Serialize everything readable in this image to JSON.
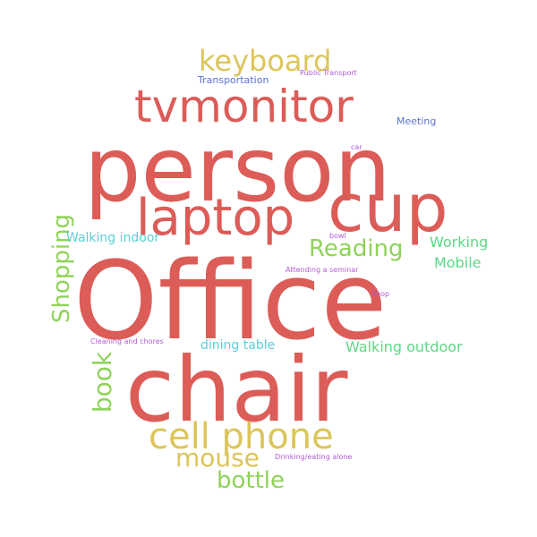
{
  "words": {
    "office": "Office",
    "person": "person",
    "chair": "chair",
    "cup": "cup",
    "laptop": "laptop",
    "tvmonitor": "tvmonitor",
    "cell_phone": "cell phone",
    "keyboard": "keyboard",
    "mouse": "mouse",
    "bottle": "bottle",
    "reading": "Reading",
    "book": "book",
    "shopping": "Shopping",
    "walking_outdoor": "Walking outdoor",
    "walking_indoor": "Walking indoor",
    "working": "Working",
    "mobile": "Mobile",
    "dining_table": "dining table",
    "transportation": "Transportation",
    "meeting": "Meeting",
    "public_transport": "Public Transport",
    "car": "car",
    "bowl": "bowl",
    "attending_seminar": "Attending a seminar",
    "shop": "Shop",
    "cleaning_chores": "Cleaning and chores",
    "drinking_eating_alone": "Drinking/eating alone"
  },
  "colors": {
    "red": "#dc5c57",
    "gold": "#dcc55a",
    "green": "#8fd35a",
    "teal_green": "#5ed786",
    "cyan": "#5acfd6",
    "blue": "#5b73d6",
    "purple": "#b25ad6"
  }
}
